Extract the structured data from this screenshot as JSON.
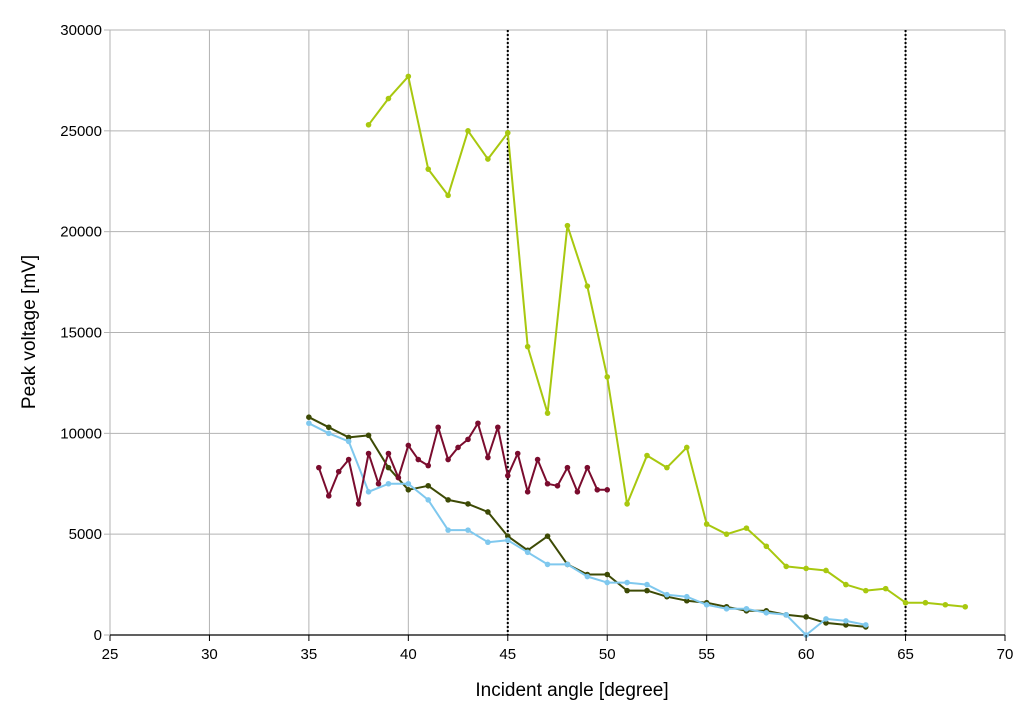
{
  "chart_data": {
    "type": "line",
    "title": "",
    "xlabel": "Incident angle [degree]",
    "ylabel": "Peak voltage [mV]",
    "xlim": [
      25,
      70
    ],
    "ylim": [
      0,
      30000
    ],
    "xticks": [
      25,
      30,
      35,
      40,
      45,
      50,
      55,
      60,
      65,
      70
    ],
    "yticks": [
      0,
      5000,
      10000,
      15000,
      20000,
      25000,
      30000
    ],
    "grid": true,
    "legend": "none",
    "vertical_reference_lines": [
      45,
      65
    ],
    "series": [
      {
        "color": "#a8c80f",
        "x": [
          38,
          39,
          40,
          41,
          42,
          43,
          44,
          45,
          46,
          47,
          48,
          49,
          50,
          51,
          52,
          53,
          54,
          55,
          56,
          57,
          58,
          59,
          60,
          61,
          62,
          63,
          64,
          65,
          66,
          67,
          68
        ],
        "y": [
          25300,
          26600,
          27700,
          23100,
          21800,
          25000,
          23600,
          24900,
          14300,
          11000,
          20300,
          17300,
          12800,
          6500,
          8900,
          8300,
          9300,
          5500,
          5000,
          5300,
          4400,
          3400,
          3300,
          3200,
          2500,
          2200,
          2300,
          1600,
          1600,
          1500,
          1400
        ]
      },
      {
        "color": "#3d4a05",
        "x": [
          35,
          36,
          37,
          38,
          39,
          40,
          41,
          42,
          43,
          44,
          45,
          46,
          47,
          48,
          49,
          50,
          51,
          52,
          53,
          54,
          55,
          56,
          57,
          58,
          59,
          60,
          61,
          62,
          63
        ],
        "y": [
          10800,
          10300,
          9800,
          9900,
          8300,
          7200,
          7400,
          6700,
          6500,
          6100,
          4900,
          4200,
          4900,
          3500,
          3000,
          3000,
          2200,
          2200,
          1900,
          1700,
          1600,
          1400,
          1200,
          1200,
          1000,
          900,
          600,
          500,
          400
        ]
      },
      {
        "color": "#7fc8ee",
        "x": [
          35,
          36,
          37,
          38,
          39,
          40,
          41,
          42,
          43,
          44,
          45,
          46,
          47,
          48,
          49,
          50,
          51,
          52,
          53,
          54,
          55,
          56,
          57,
          58,
          59,
          60,
          61,
          62,
          63
        ],
        "y": [
          10500,
          10000,
          9600,
          7100,
          7500,
          7500,
          6700,
          5200,
          5200,
          4600,
          4700,
          4100,
          3500,
          3500,
          2900,
          2600,
          2600,
          2500,
          2000,
          1900,
          1500,
          1300,
          1300,
          1100,
          1000,
          0,
          800,
          700,
          500
        ]
      },
      {
        "color": "#7a0c2e",
        "x": [
          35.5,
          36,
          36.5,
          37,
          37.5,
          38,
          38.5,
          39,
          39.5,
          40,
          40.5,
          41,
          41.5,
          42,
          42.5,
          43,
          43.5,
          44,
          44.5,
          45,
          45.5,
          46,
          46.5,
          47,
          47.5,
          48,
          48.5,
          49,
          49.5,
          50
        ],
        "y": [
          8300,
          6900,
          8100,
          8700,
          6500,
          9000,
          7500,
          9000,
          7800,
          9400,
          8700,
          8400,
          10300,
          8700,
          9300,
          9700,
          10500,
          8800,
          10300,
          7900,
          9000,
          7100,
          8700,
          7500,
          7400,
          8300,
          7100,
          8300,
          7200,
          7200
        ]
      }
    ]
  }
}
